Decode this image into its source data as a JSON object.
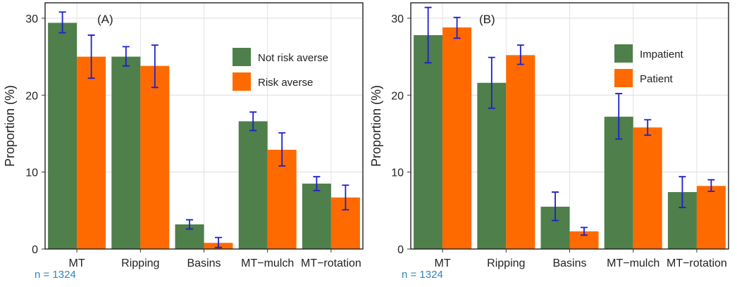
{
  "colors": {
    "green": "#4f7f4a",
    "orange": "#ff6a00",
    "errorbar": "#1f1fcc",
    "n_text": "#2e86c1"
  },
  "chart_data": [
    {
      "type": "bar",
      "panel_tag": "(A)",
      "ylabel": "Proportion (%)",
      "xlabel": "",
      "n_text": "n = 1324",
      "ylim": [
        0,
        32
      ],
      "yticks": [
        0,
        10,
        20,
        30
      ],
      "grid": true,
      "legend_position": "top-right",
      "categories": [
        "MT",
        "Ripping",
        "Basins",
        "MT−mulch",
        "MT−rotation"
      ],
      "series": [
        {
          "name": "Not risk averse",
          "color": "#4f7f4a",
          "values": [
            29.4,
            25.0,
            3.2,
            16.6,
            8.5
          ],
          "err_low": [
            28.1,
            23.8,
            2.6,
            15.4,
            7.6
          ],
          "err_high": [
            30.8,
            26.3,
            3.8,
            17.8,
            9.4
          ]
        },
        {
          "name": "Risk averse",
          "color": "#ff6a00",
          "values": [
            25.0,
            23.8,
            0.8,
            12.9,
            6.7
          ],
          "err_low": [
            22.2,
            21.0,
            0.2,
            10.8,
            5.1
          ],
          "err_high": [
            27.8,
            26.5,
            1.5,
            15.1,
            8.3
          ]
        }
      ]
    },
    {
      "type": "bar",
      "panel_tag": "(B)",
      "ylabel": "Proportion (%)",
      "xlabel": "",
      "n_text": "n = 1324",
      "ylim": [
        0,
        32
      ],
      "yticks": [
        0,
        10,
        20,
        30
      ],
      "grid": true,
      "legend_position": "top-right",
      "categories": [
        "MT",
        "Ripping",
        "Basins",
        "MT−mulch",
        "MT−rotation"
      ],
      "series": [
        {
          "name": "Impatient",
          "color": "#4f7f4a",
          "values": [
            27.8,
            21.6,
            5.5,
            17.2,
            7.4
          ],
          "err_low": [
            24.2,
            18.3,
            3.7,
            14.3,
            5.4
          ],
          "err_high": [
            31.4,
            24.9,
            7.4,
            20.2,
            9.4
          ]
        },
        {
          "name": "Patient",
          "color": "#ff6a00",
          "values": [
            28.8,
            25.2,
            2.3,
            15.8,
            8.2
          ],
          "err_low": [
            27.4,
            24.0,
            1.8,
            14.8,
            7.5
          ],
          "err_high": [
            30.1,
            26.5,
            2.8,
            16.8,
            9.0
          ]
        }
      ]
    }
  ]
}
